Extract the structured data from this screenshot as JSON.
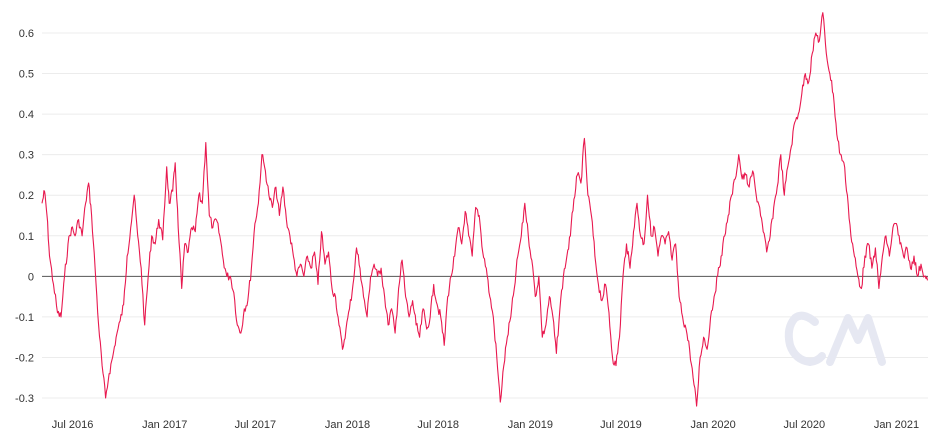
{
  "chart_data": {
    "type": "line",
    "title": "",
    "xlabel": "",
    "ylabel": "",
    "ylim": [
      -0.32,
      0.65
    ],
    "y_ticks": [
      "-0.3",
      "-0.2",
      "-0.1",
      "0",
      "0.1",
      "0.2",
      "0.3",
      "0.4",
      "0.5",
      "0.6"
    ],
    "x_ticks": [
      "Jul 2016",
      "Jan 2017",
      "Jul 2017",
      "Jan 2018",
      "Jul 2018",
      "Jan 2019",
      "Jul 2019",
      "Jan 2020",
      "Jul 2020",
      "Jan 2021"
    ],
    "x_range": [
      "2016-05-01",
      "2021-03-05"
    ],
    "grid": true,
    "legend": "none",
    "series": [
      {
        "color": "#e8194f",
        "points": [
          [
            "2016-05-01",
            0.18
          ],
          [
            "2016-05-06",
            0.21
          ],
          [
            "2016-05-11",
            0.15
          ],
          [
            "2016-05-16",
            0.05
          ],
          [
            "2016-05-24",
            -0.02
          ],
          [
            "2016-06-01",
            -0.09
          ],
          [
            "2016-06-08",
            -0.1
          ],
          [
            "2016-06-15",
            0.0
          ],
          [
            "2016-06-22",
            0.08
          ],
          [
            "2016-06-29",
            0.12
          ],
          [
            "2016-07-06",
            0.1
          ],
          [
            "2016-07-13",
            0.14
          ],
          [
            "2016-07-20",
            0.1
          ],
          [
            "2016-07-27",
            0.18
          ],
          [
            "2016-08-02",
            0.23
          ],
          [
            "2016-08-08",
            0.15
          ],
          [
            "2016-08-15",
            0.02
          ],
          [
            "2016-08-22",
            -0.12
          ],
          [
            "2016-08-29",
            -0.22
          ],
          [
            "2016-09-05",
            -0.3
          ],
          [
            "2016-09-12",
            -0.24
          ],
          [
            "2016-09-19",
            -0.2
          ],
          [
            "2016-09-26",
            -0.15
          ],
          [
            "2016-10-04",
            -0.11
          ],
          [
            "2016-10-11",
            -0.07
          ],
          [
            "2016-10-18",
            0.05
          ],
          [
            "2016-10-25",
            0.12
          ],
          [
            "2016-11-01",
            0.2
          ],
          [
            "2016-11-08",
            0.1
          ],
          [
            "2016-11-15",
            0.02
          ],
          [
            "2016-11-22",
            -0.12
          ],
          [
            "2016-11-29",
            0.0
          ],
          [
            "2016-12-06",
            0.1
          ],
          [
            "2016-12-13",
            0.08
          ],
          [
            "2016-12-20",
            0.14
          ],
          [
            "2016-12-28",
            0.09
          ],
          [
            "2017-01-05",
            0.27
          ],
          [
            "2017-01-10",
            0.18
          ],
          [
            "2017-01-17",
            0.21
          ],
          [
            "2017-01-22",
            0.28
          ],
          [
            "2017-01-28",
            0.12
          ],
          [
            "2017-02-04",
            -0.03
          ],
          [
            "2017-02-10",
            0.08
          ],
          [
            "2017-02-17",
            0.06
          ],
          [
            "2017-02-24",
            0.12
          ],
          [
            "2017-03-03",
            0.11
          ],
          [
            "2017-03-10",
            0.2
          ],
          [
            "2017-03-17",
            0.18
          ],
          [
            "2017-03-24",
            0.33
          ],
          [
            "2017-03-31",
            0.15
          ],
          [
            "2017-04-07",
            0.12
          ],
          [
            "2017-04-14",
            0.14
          ],
          [
            "2017-04-21",
            0.1
          ],
          [
            "2017-04-28",
            0.04
          ],
          [
            "2017-05-05",
            0.0
          ],
          [
            "2017-05-12",
            0.0
          ],
          [
            "2017-05-19",
            -0.04
          ],
          [
            "2017-05-26",
            -0.12
          ],
          [
            "2017-06-02",
            -0.14
          ],
          [
            "2017-06-09",
            -0.08
          ],
          [
            "2017-06-16",
            -0.06
          ],
          [
            "2017-06-23",
            0.02
          ],
          [
            "2017-06-30",
            0.13
          ],
          [
            "2017-07-07",
            0.18
          ],
          [
            "2017-07-14",
            0.3
          ],
          [
            "2017-07-21",
            0.26
          ],
          [
            "2017-07-28",
            0.2
          ],
          [
            "2017-08-04",
            0.17
          ],
          [
            "2017-08-11",
            0.22
          ],
          [
            "2017-08-18",
            0.15
          ],
          [
            "2017-08-25",
            0.22
          ],
          [
            "2017-09-01",
            0.14
          ],
          [
            "2017-09-08",
            0.1
          ],
          [
            "2017-09-15",
            0.05
          ],
          [
            "2017-09-22",
            0.0
          ],
          [
            "2017-09-29",
            0.03
          ],
          [
            "2017-10-06",
            0.0
          ],
          [
            "2017-10-13",
            0.05
          ],
          [
            "2017-10-20",
            0.02
          ],
          [
            "2017-10-27",
            0.06
          ],
          [
            "2017-11-03",
            -0.02
          ],
          [
            "2017-11-10",
            0.11
          ],
          [
            "2017-11-17",
            0.03
          ],
          [
            "2017-11-24",
            0.06
          ],
          [
            "2017-12-01",
            -0.03
          ],
          [
            "2017-12-08",
            -0.05
          ],
          [
            "2017-12-15",
            -0.12
          ],
          [
            "2017-12-22",
            -0.18
          ],
          [
            "2017-12-29",
            -0.13
          ],
          [
            "2018-01-05",
            -0.08
          ],
          [
            "2018-01-12",
            -0.02
          ],
          [
            "2018-01-19",
            0.07
          ],
          [
            "2018-01-26",
            0.02
          ],
          [
            "2018-02-02",
            -0.05
          ],
          [
            "2018-02-09",
            -0.1
          ],
          [
            "2018-02-16",
            0.0
          ],
          [
            "2018-02-23",
            0.03
          ],
          [
            "2018-03-02",
            0.0
          ],
          [
            "2018-03-09",
            0.02
          ],
          [
            "2018-03-16",
            -0.05
          ],
          [
            "2018-03-23",
            -0.12
          ],
          [
            "2018-03-30",
            -0.08
          ],
          [
            "2018-04-06",
            -0.14
          ],
          [
            "2018-04-13",
            -0.03
          ],
          [
            "2018-04-20",
            0.04
          ],
          [
            "2018-04-27",
            -0.05
          ],
          [
            "2018-05-04",
            -0.1
          ],
          [
            "2018-05-11",
            -0.06
          ],
          [
            "2018-05-18",
            -0.12
          ],
          [
            "2018-05-25",
            -0.15
          ],
          [
            "2018-06-01",
            -0.08
          ],
          [
            "2018-06-08",
            -0.13
          ],
          [
            "2018-06-15",
            -0.1
          ],
          [
            "2018-06-22",
            -0.02
          ],
          [
            "2018-06-29",
            -0.07
          ],
          [
            "2018-07-06",
            -0.1
          ],
          [
            "2018-07-13",
            -0.17
          ],
          [
            "2018-07-20",
            -0.05
          ],
          [
            "2018-07-27",
            0.0
          ],
          [
            "2018-08-03",
            0.05
          ],
          [
            "2018-08-10",
            0.12
          ],
          [
            "2018-08-17",
            0.08
          ],
          [
            "2018-08-24",
            0.16
          ],
          [
            "2018-08-31",
            0.1
          ],
          [
            "2018-09-07",
            0.05
          ],
          [
            "2018-09-14",
            0.17
          ],
          [
            "2018-09-21",
            0.15
          ],
          [
            "2018-09-28",
            0.06
          ],
          [
            "2018-10-05",
            0.02
          ],
          [
            "2018-10-12",
            -0.05
          ],
          [
            "2018-10-19",
            -0.1
          ],
          [
            "2018-10-26",
            -0.2
          ],
          [
            "2018-11-02",
            -0.31
          ],
          [
            "2018-11-09",
            -0.22
          ],
          [
            "2018-11-16",
            -0.15
          ],
          [
            "2018-11-23",
            -0.1
          ],
          [
            "2018-11-30",
            -0.03
          ],
          [
            "2018-12-07",
            0.05
          ],
          [
            "2018-12-14",
            0.1
          ],
          [
            "2018-12-21",
            0.18
          ],
          [
            "2018-12-28",
            0.1
          ],
          [
            "2019-01-04",
            0.04
          ],
          [
            "2019-01-11",
            -0.05
          ],
          [
            "2019-01-18",
            0.0
          ],
          [
            "2019-01-25",
            -0.15
          ],
          [
            "2019-02-01",
            -0.12
          ],
          [
            "2019-02-08",
            -0.05
          ],
          [
            "2019-02-15",
            -0.1
          ],
          [
            "2019-02-22",
            -0.19
          ],
          [
            "2019-03-01",
            -0.08
          ],
          [
            "2019-03-08",
            0.0
          ],
          [
            "2019-03-15",
            0.05
          ],
          [
            "2019-03-22",
            0.1
          ],
          [
            "2019-03-29",
            0.19
          ],
          [
            "2019-04-05",
            0.25
          ],
          [
            "2019-04-12",
            0.23
          ],
          [
            "2019-04-19",
            0.34
          ],
          [
            "2019-04-26",
            0.2
          ],
          [
            "2019-05-03",
            0.15
          ],
          [
            "2019-05-10",
            0.05
          ],
          [
            "2019-05-17",
            -0.02
          ],
          [
            "2019-05-24",
            -0.06
          ],
          [
            "2019-05-31",
            -0.02
          ],
          [
            "2019-06-07",
            -0.09
          ],
          [
            "2019-06-14",
            -0.2
          ],
          [
            "2019-06-21",
            -0.22
          ],
          [
            "2019-06-28",
            -0.15
          ],
          [
            "2019-07-05",
            0.0
          ],
          [
            "2019-07-12",
            0.08
          ],
          [
            "2019-07-19",
            0.02
          ],
          [
            "2019-07-26",
            0.11
          ],
          [
            "2019-08-02",
            0.18
          ],
          [
            "2019-08-09",
            0.1
          ],
          [
            "2019-08-16",
            0.08
          ],
          [
            "2019-08-23",
            0.2
          ],
          [
            "2019-08-30",
            0.1
          ],
          [
            "2019-09-06",
            0.12
          ],
          [
            "2019-09-13",
            0.05
          ],
          [
            "2019-09-20",
            0.1
          ],
          [
            "2019-09-27",
            0.08
          ],
          [
            "2019-10-04",
            0.11
          ],
          [
            "2019-10-11",
            0.04
          ],
          [
            "2019-10-18",
            0.08
          ],
          [
            "2019-10-25",
            -0.05
          ],
          [
            "2019-11-01",
            -0.1
          ],
          [
            "2019-11-08",
            -0.13
          ],
          [
            "2019-11-15",
            -0.18
          ],
          [
            "2019-11-22",
            -0.25
          ],
          [
            "2019-11-29",
            -0.32
          ],
          [
            "2019-12-06",
            -0.2
          ],
          [
            "2019-12-13",
            -0.15
          ],
          [
            "2019-12-20",
            -0.18
          ],
          [
            "2019-12-27",
            -0.1
          ],
          [
            "2020-01-03",
            -0.05
          ],
          [
            "2020-01-10",
            0.0
          ],
          [
            "2020-01-17",
            0.05
          ],
          [
            "2020-01-24",
            0.1
          ],
          [
            "2020-01-31",
            0.15
          ],
          [
            "2020-02-07",
            0.2
          ],
          [
            "2020-02-14",
            0.24
          ],
          [
            "2020-02-21",
            0.3
          ],
          [
            "2020-02-28",
            0.24
          ],
          [
            "2020-03-06",
            0.25
          ],
          [
            "2020-03-13",
            0.22
          ],
          [
            "2020-03-20",
            0.26
          ],
          [
            "2020-03-27",
            0.2
          ],
          [
            "2020-04-03",
            0.17
          ],
          [
            "2020-04-10",
            0.11
          ],
          [
            "2020-04-17",
            0.06
          ],
          [
            "2020-04-24",
            0.1
          ],
          [
            "2020-05-01",
            0.17
          ],
          [
            "2020-05-08",
            0.22
          ],
          [
            "2020-05-15",
            0.3
          ],
          [
            "2020-05-22",
            0.2
          ],
          [
            "2020-05-29",
            0.27
          ],
          [
            "2020-06-05",
            0.32
          ],
          [
            "2020-06-12",
            0.38
          ],
          [
            "2020-06-19",
            0.4
          ],
          [
            "2020-06-26",
            0.45
          ],
          [
            "2020-07-03",
            0.5
          ],
          [
            "2020-07-10",
            0.48
          ],
          [
            "2020-07-17",
            0.55
          ],
          [
            "2020-07-24",
            0.6
          ],
          [
            "2020-07-31",
            0.58
          ],
          [
            "2020-08-07",
            0.65
          ],
          [
            "2020-08-14",
            0.55
          ],
          [
            "2020-08-21",
            0.5
          ],
          [
            "2020-08-28",
            0.45
          ],
          [
            "2020-09-04",
            0.35
          ],
          [
            "2020-09-11",
            0.3
          ],
          [
            "2020-09-18",
            0.28
          ],
          [
            "2020-09-25",
            0.2
          ],
          [
            "2020-10-02",
            0.1
          ],
          [
            "2020-10-09",
            0.05
          ],
          [
            "2020-10-16",
            0.0
          ],
          [
            "2020-10-23",
            -0.03
          ],
          [
            "2020-10-30",
            0.05
          ],
          [
            "2020-11-06",
            0.08
          ],
          [
            "2020-11-13",
            0.02
          ],
          [
            "2020-11-20",
            0.07
          ],
          [
            "2020-11-27",
            -0.03
          ],
          [
            "2020-12-04",
            0.05
          ],
          [
            "2020-12-11",
            0.1
          ],
          [
            "2020-12-18",
            0.05
          ],
          [
            "2020-12-25",
            0.12
          ],
          [
            "2021-01-01",
            0.13
          ],
          [
            "2021-01-08",
            0.08
          ],
          [
            "2021-01-15",
            0.05
          ],
          [
            "2021-01-22",
            0.07
          ],
          [
            "2021-01-29",
            0.02
          ],
          [
            "2021-02-05",
            0.05
          ],
          [
            "2021-02-12",
            0.0
          ],
          [
            "2021-02-19",
            0.03
          ],
          [
            "2021-02-26",
            0.0
          ],
          [
            "2021-03-04",
            -0.01
          ]
        ]
      }
    ]
  },
  "watermark": {
    "text": "CM",
    "color": "#e6e8f2"
  }
}
